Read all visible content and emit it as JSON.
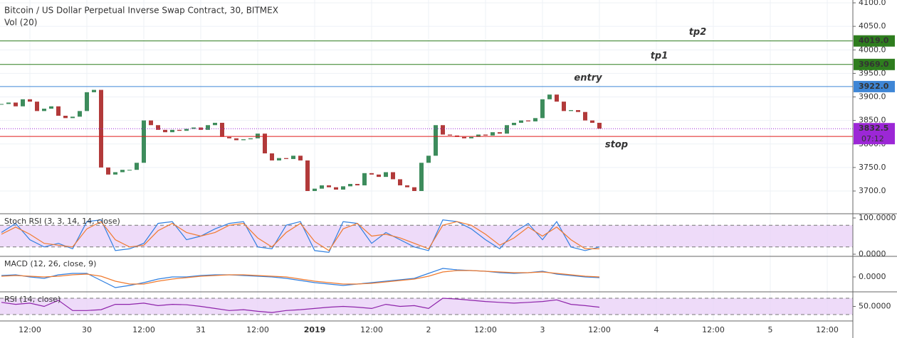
{
  "chart_data": {
    "type": "candlestick",
    "title": "Bitcoin / US Dollar Perpetual Inverse Swap Contract, 30, BITMEX",
    "volume_label": "Vol (20)",
    "up_color": "#3d8c5c",
    "down_color": "#b23a3a",
    "closes": [
      3885,
      3888,
      3880,
      3895,
      3890,
      3870,
      3875,
      3880,
      3860,
      3855,
      3858,
      3870,
      3910,
      3915,
      3750,
      3735,
      3740,
      3745,
      3745,
      3760,
      3850,
      3840,
      3830,
      3825,
      3830,
      3828,
      3832,
      3835,
      3830,
      3840,
      3845,
      3815,
      3812,
      3808,
      3810,
      3812,
      3822,
      3780,
      3765,
      3770,
      3768,
      3775,
      3765,
      3700,
      3705,
      3712,
      3708,
      3703,
      3710,
      3715,
      3712,
      3738,
      3735,
      3730,
      3740,
      3725,
      3712,
      3708,
      3700,
      3760,
      3775,
      3840,
      3820,
      3818,
      3815,
      3812,
      3815,
      3820,
      3818,
      3825,
      3822,
      3840,
      3845,
      3850,
      3848,
      3855,
      3895,
      3905,
      3890,
      3870,
      3872,
      3868,
      3850,
      3845,
      3832.5
    ],
    "ylim": [
      3675,
      4100
    ],
    "yticks": [
      {
        "value": 3700,
        "label": "3700.0"
      },
      {
        "value": 3750,
        "label": "3750.0"
      },
      {
        "value": 3800,
        "label": "3800.0"
      },
      {
        "value": 3850,
        "label": "3850.0"
      },
      {
        "value": 3900,
        "label": "3900.0"
      },
      {
        "value": 3950,
        "label": "3950.0"
      },
      {
        "value": 4000,
        "label": "4000.0"
      },
      {
        "value": 4050,
        "label": "4050.0"
      },
      {
        "value": 4100,
        "label": "4100.0"
      }
    ],
    "x_categories": [
      "12:00",
      "30",
      "12:00",
      "31",
      "12:00",
      "2019",
      "12:00",
      "2",
      "12:00",
      "3",
      "12:00",
      "4",
      "12:00",
      "5",
      "12:00"
    ],
    "levels": [
      {
        "name": "tp2",
        "value": 4019,
        "value_label": "4019.0",
        "color": "#2e7d1e"
      },
      {
        "name": "tp1",
        "value": 3969,
        "value_label": "3969.0",
        "color": "#2e7d1e"
      },
      {
        "name": "entry",
        "value": 3922,
        "value_label": "3922.0",
        "color": "#3f86d6"
      },
      {
        "name": "stop",
        "value": 3816,
        "value_label": "3816.0",
        "color": "#e01b1b"
      }
    ],
    "current": {
      "value": 3832.5,
      "value_label": "3832.5",
      "countdown": "07:12",
      "color": "#9c27d6"
    },
    "indicators": [
      {
        "title": "Stoch RSI (3, 3, 14, 14, close)",
        "ylim": [
          0,
          100
        ],
        "yticks": [
          {
            "value": 0,
            "label": "0.0000"
          },
          {
            "value": 100,
            "label": "100.0000"
          }
        ],
        "bands": [
          20,
          80
        ],
        "series": [
          {
            "color": "#2f7fe0",
            "values": [
              60,
              85,
              40,
              20,
              30,
              15,
              90,
              95,
              10,
              15,
              30,
              85,
              90,
              40,
              50,
              70,
              85,
              90,
              20,
              15,
              80,
              90,
              10,
              5,
              90,
              85,
              30,
              60,
              40,
              20,
              10,
              95,
              90,
              70,
              40,
              15,
              60,
              85,
              40,
              90,
              20,
              10,
              20
            ]
          },
          {
            "color": "#f07a2e",
            "values": [
              55,
              75,
              55,
              30,
              25,
              20,
              70,
              90,
              40,
              20,
              25,
              65,
              85,
              60,
              50,
              60,
              80,
              85,
              45,
              20,
              60,
              85,
              35,
              10,
              70,
              85,
              50,
              55,
              45,
              30,
              15,
              80,
              90,
              80,
              55,
              25,
              45,
              75,
              50,
              75,
              40,
              15,
              15
            ]
          }
        ]
      },
      {
        "title": "MACD (12, 26, close, 9)",
        "ylim": [
          -20,
          20
        ],
        "yticks": [
          {
            "value": 0,
            "label": "0.0000"
          }
        ],
        "series": [
          {
            "color": "#2f7fe0",
            "values": [
              2,
              3,
              0,
              -2,
              3,
              5,
              5,
              -5,
              -15,
              -12,
              -8,
              -3,
              0,
              0,
              2,
              3,
              3,
              2,
              1,
              0,
              -2,
              -5,
              -8,
              -10,
              -12,
              -10,
              -8,
              -6,
              -4,
              -2,
              5,
              12,
              10,
              9,
              8,
              6,
              5,
              6,
              8,
              4,
              2,
              0,
              -1
            ]
          },
          {
            "color": "#f07a2e",
            "values": [
              1,
              2,
              1,
              0,
              1,
              3,
              4,
              1,
              -6,
              -10,
              -10,
              -6,
              -3,
              -1,
              1,
              2,
              3,
              3,
              2,
              1,
              0,
              -3,
              -6,
              -8,
              -10,
              -10,
              -9,
              -7,
              -5,
              -3,
              1,
              7,
              9,
              9,
              8,
              7,
              6,
              6,
              7,
              5,
              3,
              1,
              0
            ]
          }
        ]
      },
      {
        "title": "RSI (14, close)",
        "ylim": [
          30,
          70
        ],
        "yticks": [
          {
            "value": 50,
            "label": "50.0000"
          }
        ],
        "bands": [
          30,
          70
        ],
        "series": [
          {
            "color": "#8e24aa",
            "values": [
              60,
              55,
              58,
              50,
              65,
              40,
              40,
              42,
              55,
              55,
              58,
              52,
              55,
              54,
              50,
              45,
              40,
              42,
              38,
              35,
              40,
              42,
              45,
              48,
              50,
              48,
              45,
              55,
              50,
              52,
              45,
              70,
              68,
              65,
              62,
              60,
              58,
              60,
              62,
              66,
              55,
              52,
              48
            ]
          }
        ]
      }
    ]
  }
}
